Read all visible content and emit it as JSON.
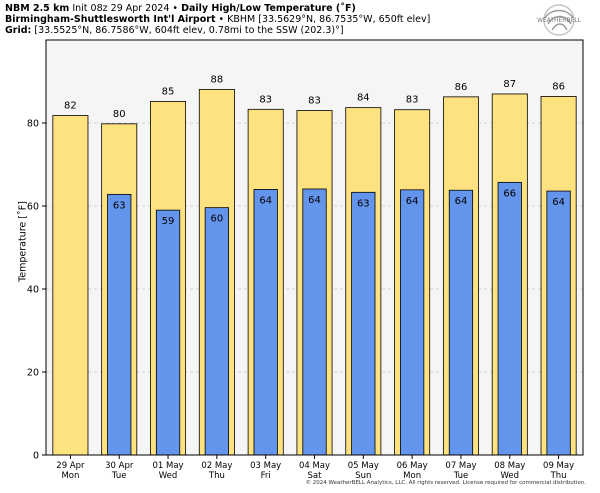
{
  "header": {
    "model": "NBM 2.5 km",
    "init": "Init 08z 29 Apr 2024",
    "sep1": "•",
    "product": "Daily High/Low Temperature (˚F)",
    "station_name": "Birmingham-Shuttlesworth Int'l Airport",
    "sep2": "•",
    "station_info": "KBHM [33.5629°N, 86.7535°W, 650ft elev]",
    "grid_label": "Grid:",
    "grid_info": "[33.5525°N, 86.7586°W, 604ft elev, 0.78mi to the SSW (202.3)°]"
  },
  "logo": {
    "text": "WEATHERBELL",
    "icon": "weatherbell-swirl-logo"
  },
  "credit": "© 2024 WeatherBELL Analytics, LLC. All rights reserved. License required for commercial distribution.",
  "colors": {
    "high": "#FFE280",
    "low": "#6495ED",
    "plot_bg": "#F5F5F5",
    "grid": "#C8C8C8"
  },
  "chart_data": {
    "type": "bar",
    "ylabel": "Temperature [˚F]",
    "ylim": [
      0,
      100
    ],
    "yticks": [
      0,
      20,
      40,
      60,
      80
    ],
    "grid": true,
    "categories": [
      {
        "date": "29 Apr",
        "day": "Mon"
      },
      {
        "date": "30 Apr",
        "day": "Tue"
      },
      {
        "date": "01 May",
        "day": "Wed"
      },
      {
        "date": "02 May",
        "day": "Thu"
      },
      {
        "date": "03 May",
        "day": "Fri"
      },
      {
        "date": "04 May",
        "day": "Sat"
      },
      {
        "date": "05 May",
        "day": "Sun"
      },
      {
        "date": "06 May",
        "day": "Mon"
      },
      {
        "date": "07 May",
        "day": "Tue"
      },
      {
        "date": "08 May",
        "day": "Wed"
      },
      {
        "date": "09 May",
        "day": "Thu"
      }
    ],
    "series": [
      {
        "values": [
          81.8,
          79.8,
          85.2,
          88.1,
          83.3,
          83.0,
          83.7,
          83.2,
          86.3,
          87.0,
          86.4
        ],
        "labels": [
          "82",
          "80",
          "85",
          "88",
          "83",
          "83",
          "84",
          "83",
          "86",
          "87",
          "86"
        ]
      },
      {
        "values": [
          null,
          62.8,
          59.0,
          59.6,
          64.0,
          64.1,
          63.3,
          63.9,
          63.8,
          65.7,
          63.6
        ],
        "labels": [
          "",
          "63",
          "59",
          "60",
          "64",
          "64",
          "63",
          "64",
          "64",
          "66",
          "64"
        ]
      }
    ]
  }
}
